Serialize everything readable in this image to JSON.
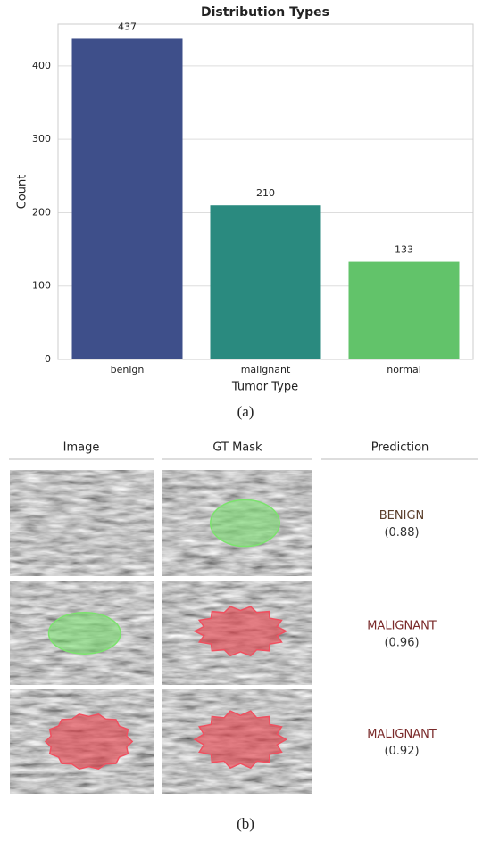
{
  "chart_data": {
    "type": "bar",
    "title": "Distribution Types",
    "categories": [
      "benign",
      "malignant",
      "normal"
    ],
    "values": [
      437,
      210,
      133
    ],
    "colors": [
      "#3e4f8a",
      "#2a8a7f",
      "#62c36a"
    ],
    "xlabel": "Tumor Type",
    "ylabel": "Count",
    "ylim": [
      0,
      457
    ],
    "yticks": [
      0,
      100,
      200,
      300,
      400
    ],
    "grid": true
  },
  "captions": [
    "(a)",
    "(b)"
  ],
  "panel": {
    "headers": [
      "Image",
      "GT Mask",
      "Prediction"
    ],
    "rows": [
      {
        "label": "BENIGN",
        "score": "(0.88)"
      },
      {
        "label": "MALIGNANT",
        "score": "(0.96)"
      },
      {
        "label": "MALIGNANT",
        "score": "(0.92)"
      }
    ]
  }
}
